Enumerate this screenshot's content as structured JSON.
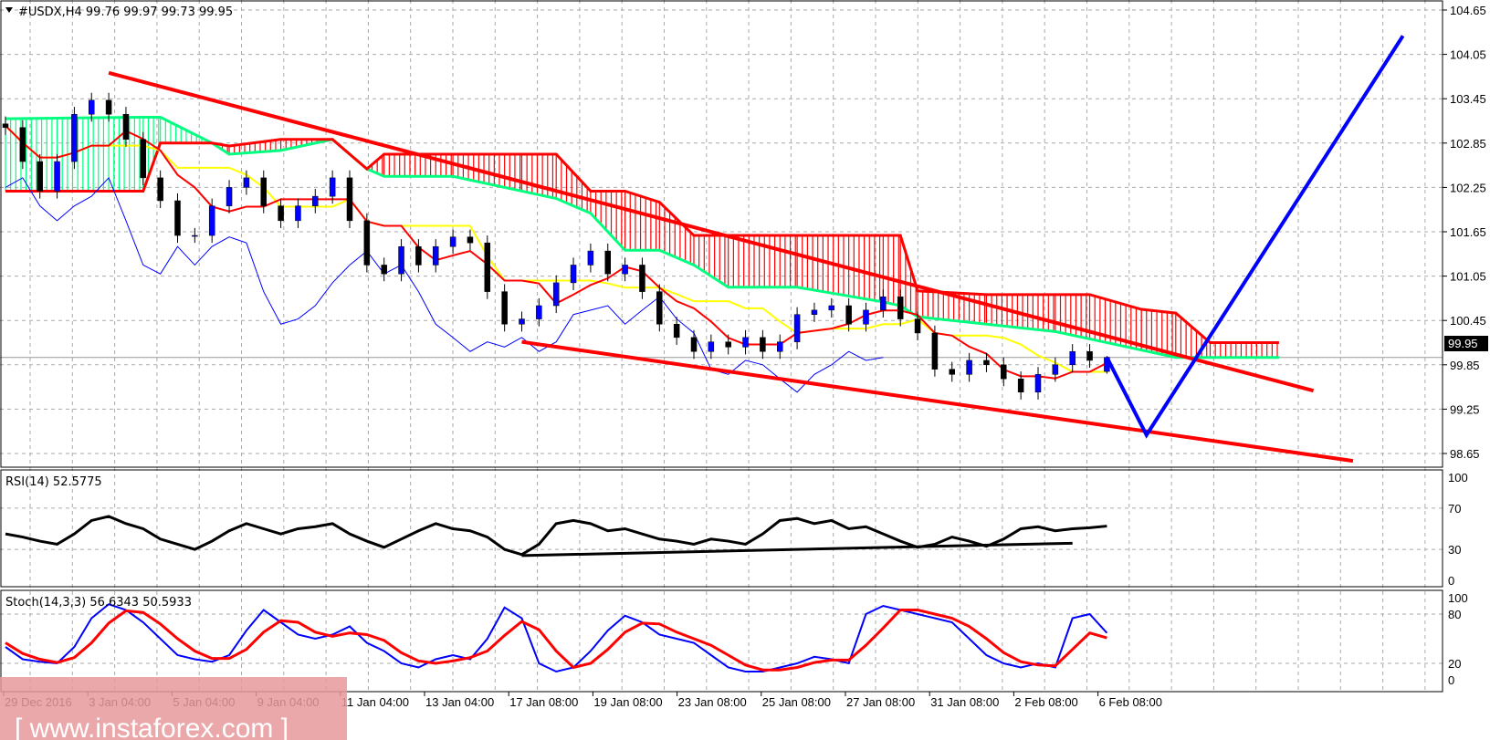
{
  "header": {
    "symbol": "#USDX,H4",
    "open": "99.76",
    "high": "99.97",
    "low": "99.73",
    "close": "99.95"
  },
  "rsi_label": "RSI(14) 52.5775",
  "stoch_label": "Stoch(14,3,3) 56.6343 50.5933",
  "current_price_label": "99.95",
  "watermark": "[ www.instaforex.com ]",
  "colors": {
    "bull": "#0000ff",
    "tenkan": "#ff0000",
    "kijun": "#ffff00",
    "chikou": "#0000ff",
    "cloud_bear": "#ff0000",
    "cloud_bull": "#00ff7f",
    "trendline": "#ff0000",
    "projection": "#0000ff",
    "stoch_k": "#0000ff",
    "stoch_d": "#ff0000",
    "rsi": "#000000",
    "watermark_bg": "#e6999c"
  },
  "chart_data": [
    {
      "type": "candlestick",
      "title": "#USDX,H4",
      "x_tick_labels": [
        "29 Dec 2016",
        "3 Jan 04:00",
        "5 Jan 04:00",
        "9 Jan 04:00",
        "11 Jan 04:00",
        "13 Jan 04:00",
        "17 Jan 08:00",
        "19 Jan 08:00",
        "23 Jan 08:00",
        "25 Jan 08:00",
        "27 Jan 08:00",
        "31 Jan 08:00",
        "2 Feb 08:00",
        "6 Feb 08:00"
      ],
      "y_tick_labels": [
        "104.65",
        "104.05",
        "103.45",
        "102.85",
        "102.25",
        "101.65",
        "101.05",
        "100.45",
        "99.85",
        "99.25",
        "98.65"
      ],
      "ylim": [
        98.55,
        104.75
      ],
      "grid": true,
      "close": [
        103.06,
        102.6,
        102.2,
        102.6,
        103.24,
        103.43,
        103.24,
        102.9,
        102.38,
        102.07,
        101.6,
        101.6,
        102.0,
        102.25,
        102.38,
        102.0,
        101.8,
        102.0,
        102.13,
        102.38,
        101.8,
        101.2,
        101.08,
        101.45,
        101.2,
        101.45,
        101.58,
        101.5,
        100.84,
        100.4,
        100.47,
        100.65,
        100.96,
        101.2,
        101.39,
        101.08,
        101.2,
        100.84,
        100.4,
        100.22,
        100.03,
        100.16,
        100.09,
        100.22,
        100.03,
        100.16,
        100.53,
        100.59,
        100.65,
        100.4,
        100.59,
        100.77,
        100.47,
        100.28,
        99.79,
        99.72,
        99.91,
        99.85,
        99.66,
        99.48,
        99.72,
        99.85,
        100.03,
        99.91,
        99.95
      ],
      "last_bar_ohlc": [
        99.76,
        99.97,
        99.73,
        99.95
      ],
      "ichimoku_cloud": {
        "bar": [
          0,
          8,
          9,
          12,
          13,
          16,
          19,
          21,
          22,
          26,
          30,
          32,
          34,
          36,
          38,
          40,
          42,
          46,
          51,
          52,
          53,
          57,
          61,
          63,
          66,
          68,
          70,
          74
        ],
        "span_a": [
          103.18,
          103.2,
          103.2,
          102.85,
          102.7,
          102.75,
          102.9,
          102.5,
          102.4,
          102.4,
          102.2,
          102.1,
          101.9,
          101.4,
          101.4,
          101.2,
          100.9,
          100.9,
          100.7,
          100.65,
          100.5,
          100.4,
          100.3,
          100.2,
          100.05,
          99.95,
          99.95,
          99.95
        ],
        "span_b": [
          102.2,
          102.2,
          102.85,
          102.85,
          102.81,
          102.9,
          102.9,
          102.5,
          102.7,
          102.7,
          102.7,
          102.7,
          102.2,
          102.2,
          102.05,
          101.6,
          101.6,
          101.6,
          101.6,
          101.6,
          100.85,
          100.8,
          100.8,
          100.8,
          100.6,
          100.55,
          100.15,
          100.15
        ]
      },
      "trendlines": [
        {
          "color": "red",
          "from": [
            6,
            103.8
          ],
          "to": [
            76,
            99.5
          ]
        },
        {
          "color": "red",
          "from": [
            30,
            100.16
          ],
          "to": [
            78.3,
            98.55
          ]
        }
      ],
      "projection": {
        "color": "blue",
        "points": [
          [
            64,
            99.95
          ],
          [
            66.3,
            98.9
          ],
          [
            81.2,
            104.3
          ]
        ]
      },
      "current_price": 99.95
    },
    {
      "type": "line",
      "title": "RSI(14) 52.5775",
      "ylim": [
        0,
        100
      ],
      "y_tick_labels": [
        "100",
        "70",
        "30",
        "0"
      ],
      "values": [
        45,
        42,
        38,
        35,
        45,
        58,
        62,
        55,
        50,
        40,
        35,
        30,
        38,
        48,
        55,
        50,
        45,
        50,
        52,
        55,
        45,
        38,
        32,
        40,
        48,
        55,
        50,
        48,
        42,
        30,
        25,
        35,
        55,
        58,
        55,
        48,
        50,
        45,
        40,
        38,
        35,
        40,
        38,
        35,
        45,
        58,
        60,
        55,
        58,
        50,
        52,
        45,
        38,
        32,
        35,
        42,
        38,
        33,
        40,
        50,
        52,
        48,
        50,
        51,
        52.6
      ],
      "trendline": {
        "from": [
          30,
          24
        ],
        "to": [
          62,
          36
        ]
      }
    },
    {
      "type": "line",
      "title": "Stoch(14,3,3) 56.6343 50.5933",
      "ylim": [
        0,
        100
      ],
      "y_tick_labels": [
        "100",
        "80",
        "20",
        "0"
      ],
      "series": [
        {
          "values": [
            40,
            25,
            22,
            20,
            40,
            75,
            92,
            85,
            70,
            50,
            30,
            25,
            22,
            30,
            60,
            85,
            70,
            55,
            50,
            55,
            65,
            45,
            35,
            20,
            15,
            25,
            30,
            25,
            50,
            88,
            75,
            20,
            10,
            15,
            35,
            60,
            78,
            70,
            55,
            50,
            45,
            30,
            15,
            10,
            10,
            15,
            20,
            28,
            25,
            20,
            80,
            90,
            85,
            80,
            75,
            70,
            50,
            30,
            20,
            15,
            20,
            15,
            75,
            80,
            57
          ]
        },
        {
          "values": [
            45,
            32,
            25,
            21,
            27,
            45,
            69,
            84,
            82,
            68,
            50,
            35,
            26,
            26,
            37,
            58,
            72,
            70,
            58,
            53,
            57,
            55,
            48,
            33,
            23,
            20,
            23,
            27,
            35,
            54,
            71,
            61,
            35,
            15,
            20,
            37,
            58,
            69,
            68,
            58,
            50,
            42,
            30,
            18,
            12,
            12,
            15,
            21,
            24,
            24,
            42,
            63,
            85,
            85,
            80,
            75,
            65,
            50,
            33,
            22,
            18,
            17,
            37,
            57,
            51
          ]
        }
      ]
    }
  ]
}
